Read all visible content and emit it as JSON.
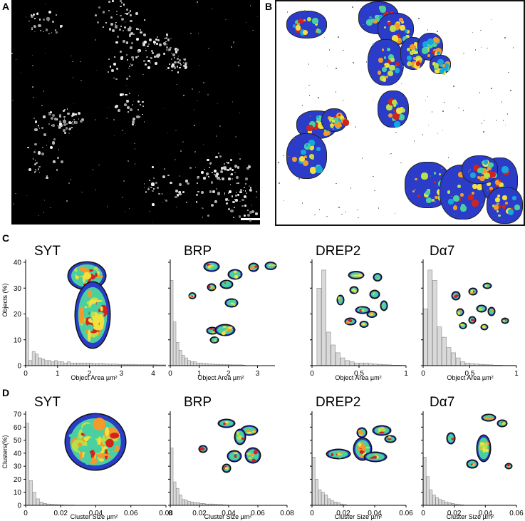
{
  "panels": {
    "A": "A",
    "B": "B",
    "C": "C",
    "D": "D"
  },
  "row_c": {
    "y_label": "Objects (%)",
    "y_ticks": [
      "0",
      "10",
      "20",
      "30",
      "40"
    ],
    "x_label": "Object Area µm²",
    "charts": [
      {
        "title": "SYT",
        "x_ticks": [
          "0",
          "1",
          "2",
          "3",
          "4"
        ]
      },
      {
        "title": "BRP",
        "x_ticks": [
          "0",
          "1",
          "2",
          "3"
        ]
      },
      {
        "title": "DREP2",
        "x_ticks": [
          "0",
          "0.5",
          "1"
        ]
      },
      {
        "title": "Dα7",
        "x_ticks": [
          "0",
          "0.5",
          "1"
        ]
      }
    ]
  },
  "row_d": {
    "y_label": "Clusters(%)",
    "y_ticks": [
      "0",
      "10",
      "20",
      "30",
      "40",
      "50",
      "60",
      "70"
    ],
    "x_label": "Cluster Size µm²",
    "charts": [
      {
        "title": "SYT",
        "x_ticks": [
          "0",
          "0.02",
          "0.04",
          "0.06",
          "0.08"
        ]
      },
      {
        "title": "BRP",
        "x_ticks": [
          "0",
          "0.02",
          "0.04",
          "0.06",
          "0.08"
        ]
      },
      {
        "title": "DREP2",
        "x_ticks": [
          "0",
          "0.02",
          "0.04",
          "0.06"
        ]
      },
      {
        "title": "Dα7",
        "x_ticks": [
          "0",
          "0.02",
          "0.04",
          "0.06"
        ]
      }
    ]
  },
  "chart_data": [
    {
      "type": "bar",
      "title": "SYT",
      "xlabel": "Object Area µm²",
      "ylabel": "Objects (%)",
      "xlim": [
        0,
        4.4
      ],
      "ylim": [
        0,
        40
      ],
      "x": [
        0.05,
        0.15,
        0.25,
        0.35,
        0.45,
        0.55,
        0.65,
        0.75,
        0.85,
        0.95,
        1.05,
        1.15,
        1.25,
        1.35,
        1.45,
        1.55,
        1.65,
        1.75,
        1.85,
        1.95,
        2.05,
        2.15,
        2.25,
        2.35,
        2.45,
        2.55,
        2.65,
        2.75,
        2.85,
        2.95,
        3.05,
        3.15,
        3.25,
        3.35,
        3.45,
        3.55,
        3.65,
        3.75,
        3.85,
        3.95,
        4.05,
        4.15,
        4.25,
        4.35
      ],
      "values": [
        18.5,
        2,
        5.5,
        4.5,
        3,
        2.5,
        2,
        2,
        1.5,
        2,
        1.5,
        1.5,
        1,
        1.5,
        1,
        1,
        1,
        1,
        1,
        1,
        1,
        0.8,
        0.8,
        0.8,
        0.8,
        0.6,
        0.6,
        0.6,
        0.6,
        0.5,
        0.5,
        0.5,
        0.5,
        0.5,
        0.5,
        0.4,
        0.4,
        0.4,
        0.4,
        0.4,
        0.4,
        0.3,
        0.3,
        0.3
      ]
    },
    {
      "type": "bar",
      "title": "BRP",
      "xlabel": "Object Area µm²",
      "ylabel": "Objects (%)",
      "xlim": [
        0,
        3.6
      ],
      "ylim": [
        0,
        40
      ],
      "x": [
        0.05,
        0.15,
        0.25,
        0.35,
        0.45,
        0.55,
        0.65,
        0.75,
        0.85,
        0.95,
        1.05,
        1.15,
        1.25,
        1.35,
        1.45,
        1.55,
        1.65,
        1.75,
        1.85,
        1.95,
        2.05,
        2.15,
        2.25,
        2.35,
        2.45,
        2.55
      ],
      "values": [
        33,
        17,
        9,
        6,
        4,
        3,
        2,
        1.5,
        1.5,
        1,
        1,
        0.8,
        0.8,
        0.6,
        0.6,
        0.5,
        0.5,
        0.5,
        0.4,
        0.4,
        0.4,
        0.3,
        0.3,
        0.3,
        0.3,
        0.2
      ]
    },
    {
      "type": "bar",
      "title": "DREP2",
      "xlabel": "Object Area µm²",
      "ylabel": "Objects (%)",
      "xlim": [
        0,
        1
      ],
      "ylim": [
        0,
        40
      ],
      "x": [
        0.025,
        0.075,
        0.125,
        0.175,
        0.225,
        0.275,
        0.325,
        0.375,
        0.425,
        0.475,
        0.525,
        0.575,
        0.625,
        0.675,
        0.725,
        0.775,
        0.825,
        0.875,
        0.925,
        0.975
      ],
      "values": [
        0,
        30,
        37,
        13,
        8,
        5,
        3,
        2,
        1.5,
        1,
        1,
        1,
        0.8,
        0.6,
        0.5,
        0.4,
        0.3,
        0.2,
        0.2,
        0.1
      ]
    },
    {
      "type": "bar",
      "title": "Dα7",
      "xlabel": "Object Area µm²",
      "ylabel": "Objects (%)",
      "xlim": [
        0,
        1
      ],
      "ylim": [
        0,
        40
      ],
      "x": [
        0.025,
        0.075,
        0.125,
        0.175,
        0.225,
        0.275,
        0.325,
        0.375,
        0.425,
        0.475,
        0.525,
        0.575,
        0.625,
        0.675,
        0.725,
        0.775,
        0.825,
        0.875,
        0.925,
        0.975
      ],
      "values": [
        22,
        37,
        33,
        15,
        11,
        7,
        5,
        3,
        1.5,
        1,
        0.8,
        0.6,
        0.5,
        0.4,
        0.3,
        0.2,
        0.2,
        0.1,
        0.1,
        0.1
      ]
    },
    {
      "type": "bar",
      "title": "SYT",
      "xlabel": "Cluster Size µm²",
      "ylabel": "Clusters(%)",
      "xlim": [
        0,
        0.08
      ],
      "ylim": [
        0,
        70
      ],
      "x": [
        0.001,
        0.003,
        0.005,
        0.007,
        0.009,
        0.011,
        0.013,
        0.015,
        0.017,
        0.019,
        0.021,
        0.023,
        0.025,
        0.027,
        0.029,
        0.031
      ],
      "values": [
        63,
        19,
        10,
        5,
        2.5,
        1.5,
        1,
        0.8,
        0.6,
        0.5,
        0.4,
        0.3,
        0.2,
        0.2,
        0.1,
        0.1
      ]
    },
    {
      "type": "bar",
      "title": "BRP",
      "xlabel": "Cluster Size µm²",
      "ylabel": "Clusters(%)",
      "xlim": [
        0,
        0.08
      ],
      "ylim": [
        0,
        70
      ],
      "x": [
        0.001,
        0.003,
        0.005,
        0.007,
        0.009,
        0.011,
        0.013,
        0.015,
        0.017,
        0.019,
        0.021,
        0.023,
        0.025,
        0.027,
        0.029,
        0.031,
        0.033,
        0.035,
        0.037,
        0.039
      ],
      "values": [
        44,
        18,
        13,
        8,
        4.5,
        4,
        3,
        2.5,
        2,
        2,
        1.5,
        1.5,
        1,
        1,
        1,
        0.8,
        0.6,
        0.6,
        0.4,
        0.3
      ]
    },
    {
      "type": "bar",
      "title": "DREP2",
      "xlabel": "Cluster Size µm²",
      "ylabel": "Clusters(%)",
      "xlim": [
        0,
        0.06
      ],
      "ylim": [
        0,
        70
      ],
      "x": [
        0.001,
        0.003,
        0.005,
        0.007,
        0.009,
        0.011,
        0.013,
        0.015,
        0.017,
        0.019,
        0.021
      ],
      "values": [
        37,
        20,
        12,
        10,
        8,
        5,
        3.5,
        2.5,
        2,
        1,
        0.6
      ]
    },
    {
      "type": "bar",
      "title": "Dα7",
      "xlabel": "Cluster Size µm²",
      "ylabel": "Clusters(%)",
      "xlim": [
        0,
        0.06
      ],
      "ylim": [
        0,
        70
      ],
      "x": [
        0.001,
        0.003,
        0.005,
        0.007,
        0.009,
        0.011,
        0.013,
        0.015,
        0.017,
        0.019,
        0.021,
        0.023,
        0.025
      ],
      "values": [
        37,
        22,
        12,
        8,
        6,
        4.5,
        3.5,
        2.5,
        2,
        1.5,
        1,
        0.6,
        0.4
      ]
    }
  ]
}
